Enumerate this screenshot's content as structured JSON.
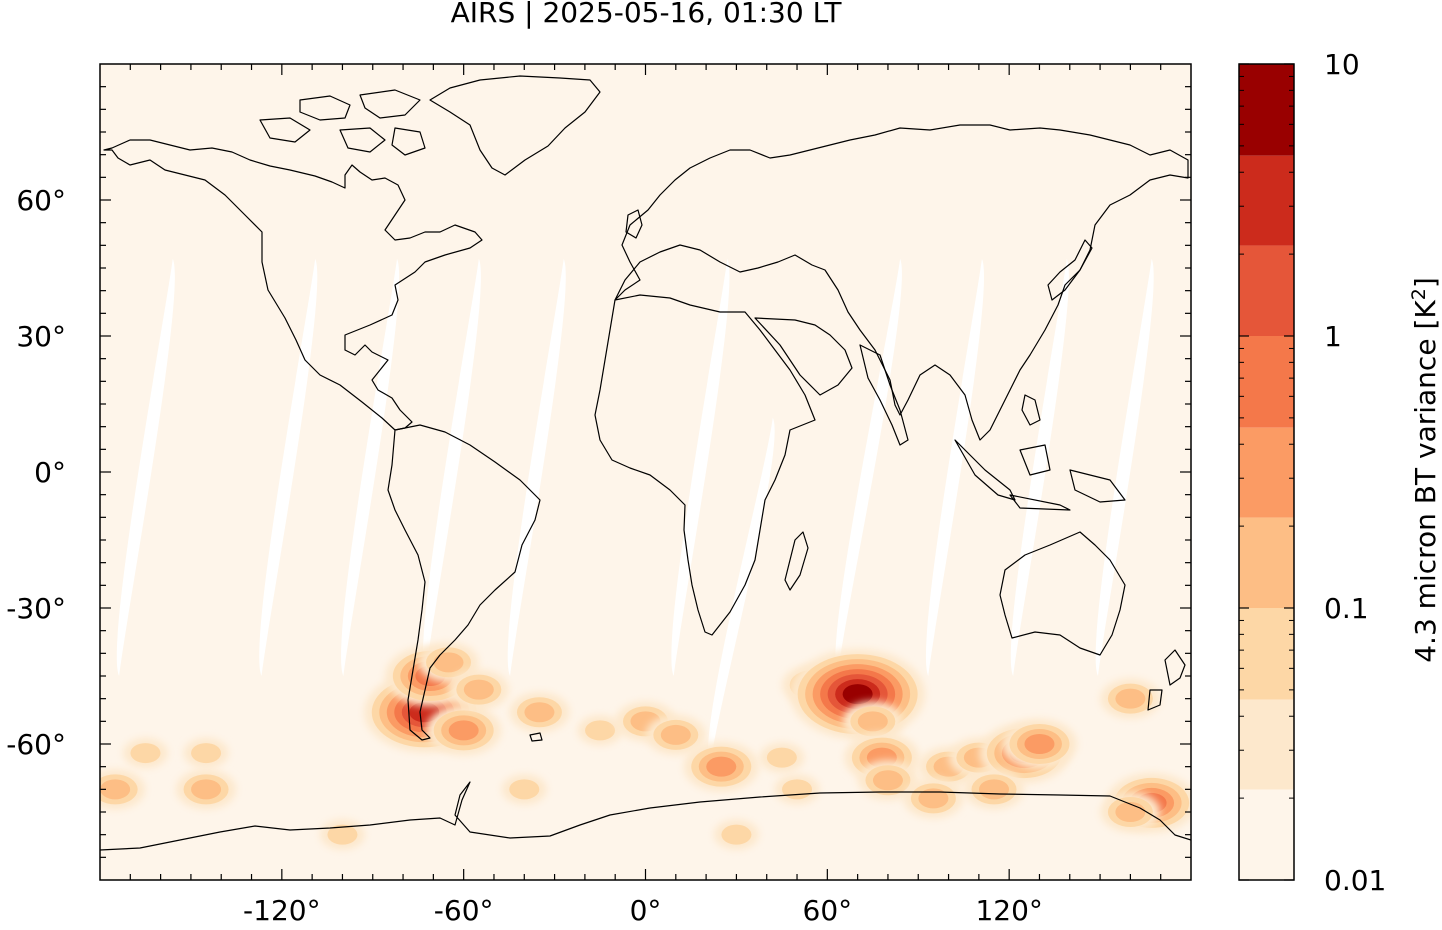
{
  "title": "AIRS | 2025-05-16, 01:30 LT",
  "map": {
    "projection": "equirectangular",
    "lon_range": [
      -180,
      180
    ],
    "lat_range": [
      -90,
      90
    ],
    "background_color": "#fef5ea",
    "no_data_color": "#ffffff",
    "coastline_color": "#000000",
    "x_ticks": [
      {
        "value": -120,
        "label": "-120°"
      },
      {
        "value": -60,
        "label": "-60°"
      },
      {
        "value": 0,
        "label": "0°"
      },
      {
        "value": 60,
        "label": "60°"
      },
      {
        "value": 120,
        "label": "120°"
      }
    ],
    "y_ticks": [
      {
        "value": 60,
        "label": "60°"
      },
      {
        "value": 30,
        "label": "30°"
      },
      {
        "value": 0,
        "label": "0°"
      },
      {
        "value": -30,
        "label": "-30°"
      },
      {
        "value": -60,
        "label": "-60°"
      }
    ],
    "swath_gaps": [
      {
        "lon_top": -155,
        "lon_bottom": -175,
        "lat_top": 47,
        "lat_bottom": -45
      },
      {
        "lon_top": -108,
        "lon_bottom": -128,
        "lat_top": 47,
        "lat_bottom": -45
      },
      {
        "lon_top": -81,
        "lon_bottom": -101,
        "lat_top": 47,
        "lat_bottom": -45
      },
      {
        "lon_top": -54,
        "lon_bottom": -74,
        "lat_top": 47,
        "lat_bottom": -45
      },
      {
        "lon_top": -26,
        "lon_bottom": -46,
        "lat_top": 47,
        "lat_bottom": -45
      },
      {
        "lon_top": 28,
        "lon_bottom": 8,
        "lat_top": 47,
        "lat_bottom": -45
      },
      {
        "lon_top": 43,
        "lon_bottom": 20,
        "lat_top": 12,
        "lat_bottom": -65
      },
      {
        "lon_top": 85,
        "lon_bottom": 62,
        "lat_top": 47,
        "lat_bottom": -45
      },
      {
        "lon_top": 112,
        "lon_bottom": 92,
        "lat_top": 47,
        "lat_bottom": -45
      },
      {
        "lon_top": 140,
        "lon_bottom": 120,
        "lat_top": 47,
        "lat_bottom": -45
      },
      {
        "lon_top": 168,
        "lon_bottom": 148,
        "lat_top": 47,
        "lat_bottom": -45
      }
    ],
    "hotspots": [
      {
        "lon": -73,
        "lat": -53,
        "level": 7
      },
      {
        "lon": -71,
        "lat": -45,
        "level": 5
      },
      {
        "lon": -65,
        "lat": -42,
        "level": 3
      },
      {
        "lon": -60,
        "lat": -57,
        "level": 4
      },
      {
        "lon": -55,
        "lat": -48,
        "level": 3
      },
      {
        "lon": -35,
        "lat": -53,
        "level": 3
      },
      {
        "lon": -40,
        "lat": -70,
        "level": 2
      },
      {
        "lon": -145,
        "lat": -70,
        "level": 3
      },
      {
        "lon": -175,
        "lat": -70,
        "level": 3
      },
      {
        "lon": -165,
        "lat": -62,
        "level": 2
      },
      {
        "lon": -145,
        "lat": -62,
        "level": 2
      },
      {
        "lon": -15,
        "lat": -57,
        "level": 2
      },
      {
        "lon": 0,
        "lat": -55,
        "level": 3
      },
      {
        "lon": 10,
        "lat": -58,
        "level": 3
      },
      {
        "lon": 25,
        "lat": -65,
        "level": 4
      },
      {
        "lon": 55,
        "lat": -47,
        "level": 3
      },
      {
        "lon": 65,
        "lat": -52,
        "level": 3
      },
      {
        "lon": 70,
        "lat": -49,
        "level": 8
      },
      {
        "lon": 75,
        "lat": -55,
        "level": 3
      },
      {
        "lon": 78,
        "lat": -63,
        "level": 4
      },
      {
        "lon": 80,
        "lat": -68,
        "level": 3
      },
      {
        "lon": 100,
        "lat": -65,
        "level": 3
      },
      {
        "lon": 110,
        "lat": -63,
        "level": 3
      },
      {
        "lon": 125,
        "lat": -62,
        "level": 5
      },
      {
        "lon": 130,
        "lat": -60,
        "level": 4
      },
      {
        "lon": 115,
        "lat": -70,
        "level": 3
      },
      {
        "lon": 95,
        "lat": -72,
        "level": 3
      },
      {
        "lon": 160,
        "lat": -50,
        "level": 3
      },
      {
        "lon": 167,
        "lat": -73,
        "level": 5
      },
      {
        "lon": 160,
        "lat": -75,
        "level": 3
      },
      {
        "lon": 45,
        "lat": -63,
        "level": 2
      },
      {
        "lon": 50,
        "lat": -70,
        "level": 2
      },
      {
        "lon": -100,
        "lat": -80,
        "level": 2
      },
      {
        "lon": 30,
        "lat": -80,
        "level": 2
      }
    ]
  },
  "colorbar": {
    "label": "4.3 micron BT variance [K",
    "label_superscript": "2",
    "label_close": "]",
    "scale": "log",
    "range": [
      0.01,
      10
    ],
    "tick_labels": [
      {
        "value": 10,
        "label": "10"
      },
      {
        "value": 1,
        "label": "1"
      },
      {
        "value": 0.1,
        "label": "0.1"
      },
      {
        "value": 0.01,
        "label": "0.01"
      }
    ],
    "bins": [
      {
        "upper": 10,
        "color": "#990000"
      },
      {
        "upper": 4.6,
        "color": "#cc2b1c"
      },
      {
        "upper": 2.15,
        "color": "#e55639"
      },
      {
        "upper": 1,
        "color": "#f4784a"
      },
      {
        "upper": 0.46,
        "color": "#fb9b64"
      },
      {
        "upper": 0.215,
        "color": "#fdbe85"
      },
      {
        "upper": 0.1,
        "color": "#fdd7a6"
      },
      {
        "upper": 0.046,
        "color": "#fde8cc"
      },
      {
        "upper": 0.0215,
        "color": "#fef5ea"
      }
    ]
  }
}
